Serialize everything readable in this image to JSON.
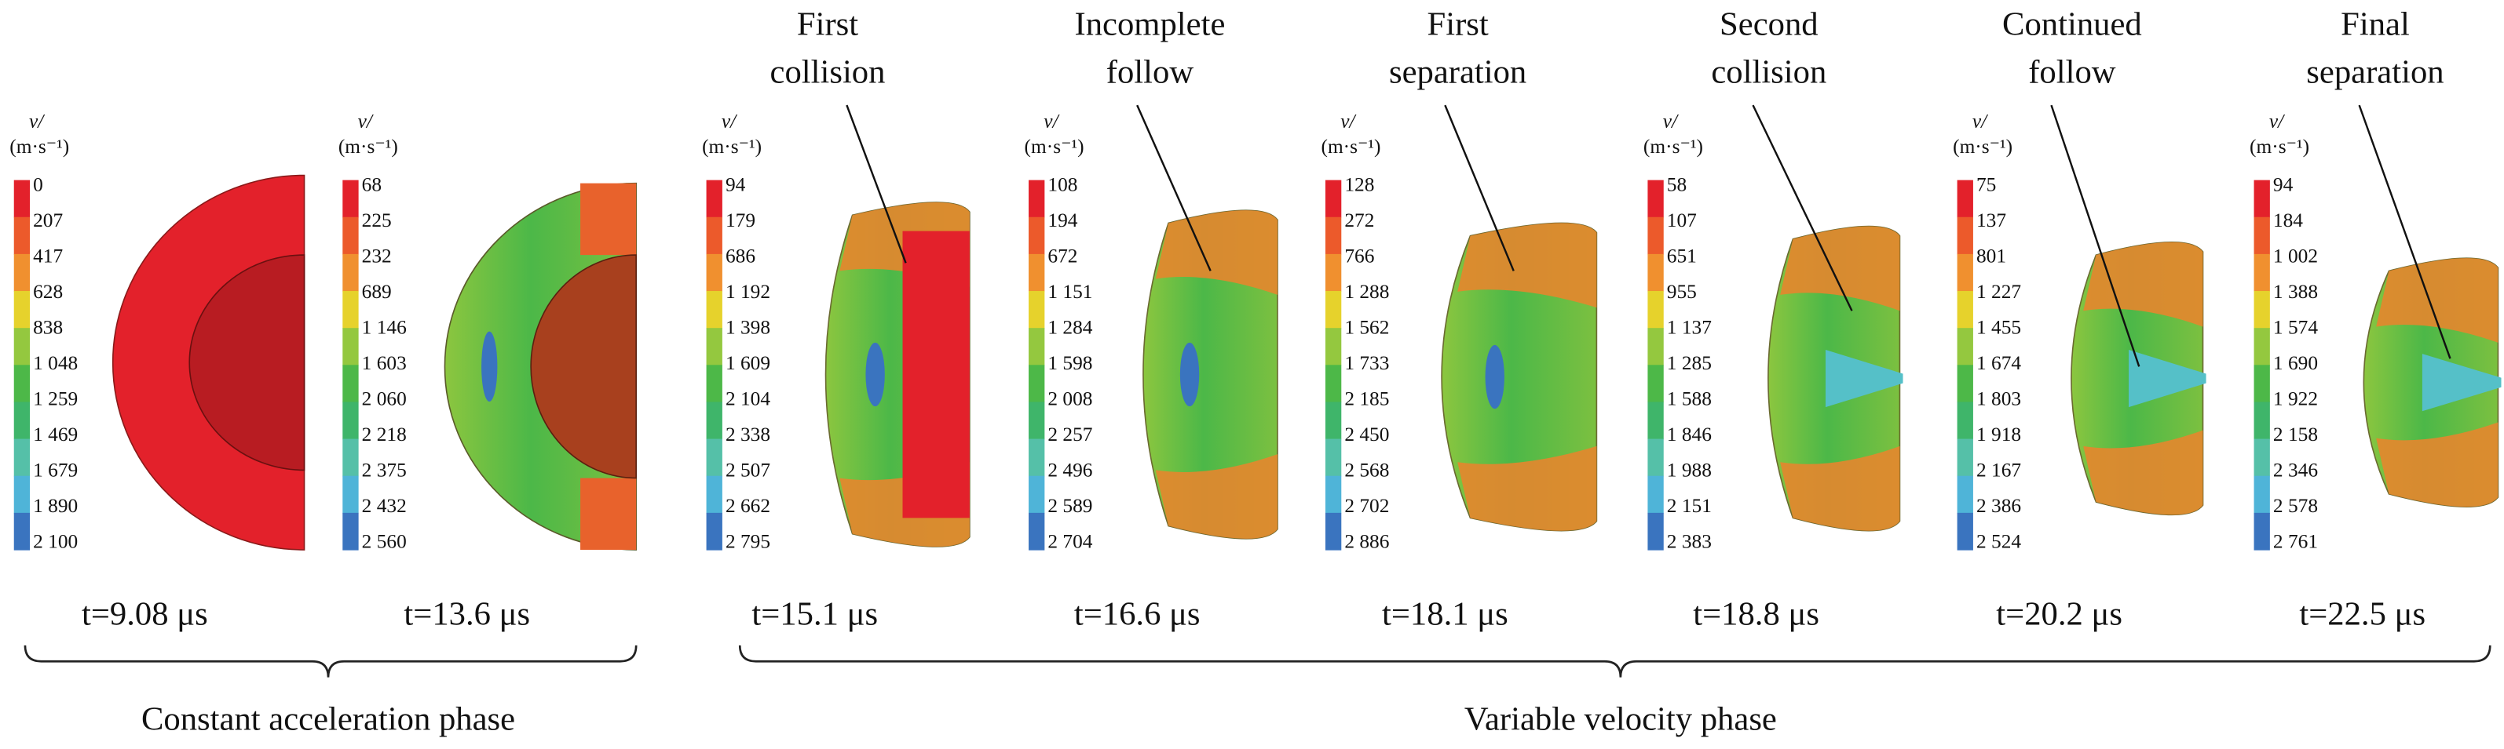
{
  "colorbar_unit": [
    "v/",
    "(m·s⁻¹)"
  ],
  "phases": [
    "Constant acceleration phase",
    "Variable velocity phase"
  ],
  "panels": [
    {
      "labels": [
        "0",
        "207",
        "417",
        "628",
        "838",
        "1 048",
        "1 259",
        "1 469",
        "1 679",
        "1 890",
        "2 100"
      ],
      "time": "t=9.08 μs"
    },
    {
      "labels": [
        "68",
        "225",
        "232",
        "689",
        "1 146",
        "1 603",
        "2 060",
        "2 218",
        "2 375",
        "2 432",
        "2 560"
      ],
      "time": "t=13.6 μs"
    },
    {
      "annotation": [
        "First",
        "collision"
      ],
      "labels": [
        "94",
        "179",
        "686",
        "1 192",
        "1 398",
        "1 609",
        "2 104",
        "2 338",
        "2 507",
        "2 662",
        "2 795"
      ],
      "time": "t=15.1 μs"
    },
    {
      "annotation": [
        "Incomplete",
        "follow"
      ],
      "labels": [
        "108",
        "194",
        "672",
        "1 151",
        "1 284",
        "1 598",
        "2 008",
        "2 257",
        "2 496",
        "2 589",
        "2 704"
      ],
      "time": "t=16.6 μs"
    },
    {
      "annotation": [
        "First",
        "separation"
      ],
      "labels": [
        "128",
        "272",
        "766",
        "1 288",
        "1 562",
        "1 733",
        "2 185",
        "2 450",
        "2 568",
        "2 702",
        "2 886"
      ],
      "time": "t=18.1 μs"
    },
    {
      "annotation": [
        "Second",
        "collision"
      ],
      "labels": [
        "58",
        "107",
        "651",
        "955",
        "1 137",
        "1 285",
        "1 588",
        "1 846",
        "1 988",
        "2 151",
        "2 383"
      ],
      "time": "t=18.8 μs"
    },
    {
      "annotation": [
        "Continued",
        "follow"
      ],
      "labels": [
        "75",
        "137",
        "801",
        "1 227",
        "1 455",
        "1 674",
        "1 803",
        "1 918",
        "2 167",
        "2 386",
        "2 524"
      ],
      "time": "t=20.2 μs"
    },
    {
      "annotation": [
        "Final",
        "separation"
      ],
      "labels": [
        "94",
        "184",
        "1 002",
        "1 388",
        "1 574",
        "1 690",
        "1 922",
        "2 158",
        "2 346",
        "2 578",
        "2 761"
      ],
      "time": "t=22.5 μs"
    }
  ]
}
